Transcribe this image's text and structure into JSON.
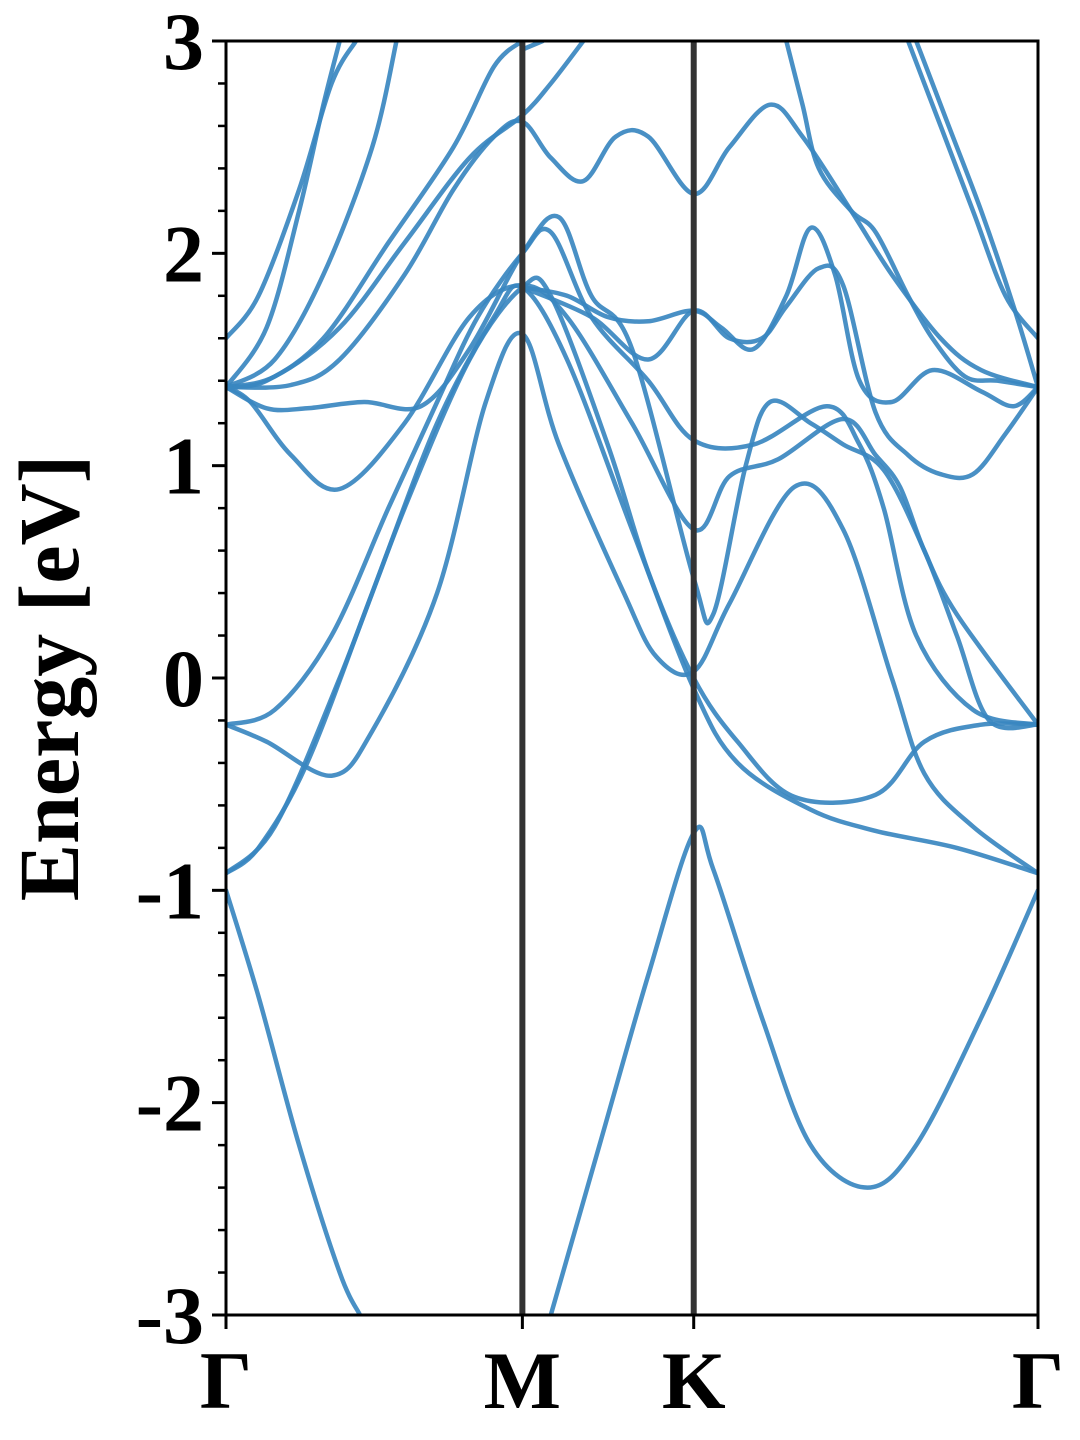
{
  "chart_data": {
    "type": "line",
    "title": "",
    "xlabel": "",
    "ylabel": "Energy [eV]",
    "ylim": [
      -3,
      3
    ],
    "yticks": [
      {
        "value": -3,
        "label": "-3"
      },
      {
        "value": -2,
        "label": "-2"
      },
      {
        "value": -1,
        "label": "-1"
      },
      {
        "value": 0,
        "label": "0"
      },
      {
        "value": 1,
        "label": "1"
      },
      {
        "value": 2,
        "label": "2"
      },
      {
        "value": 3,
        "label": "3"
      }
    ],
    "xlim": [
      0,
      1
    ],
    "high_symmetry_points": [
      {
        "label": "Γ",
        "x": 0.0
      },
      {
        "label": "M",
        "x": 0.365
      },
      {
        "label": "K",
        "x": 0.576
      },
      {
        "label": "Γ",
        "x": 1.0
      }
    ],
    "grid": false,
    "line_color": "#3a87c0",
    "divider_color": "#333333",
    "series": [
      {
        "values": [
          [
            0,
            -1.0
          ],
          [
            0.04,
            -1.5
          ],
          [
            0.09,
            -2.2
          ],
          [
            0.14,
            -2.8
          ],
          [
            0.165,
            -3.0
          ]
        ]
      },
      {
        "values": [
          [
            0.4,
            -3.0
          ],
          [
            0.46,
            -2.2
          ],
          [
            0.52,
            -1.4
          ],
          [
            0.576,
            -0.73
          ],
          [
            0.6,
            -0.9
          ],
          [
            0.66,
            -1.6
          ],
          [
            0.72,
            -2.2
          ],
          [
            0.79,
            -2.4
          ],
          [
            0.85,
            -2.2
          ],
          [
            0.93,
            -1.6
          ],
          [
            1.0,
            -1.0
          ]
        ]
      },
      {
        "values": [
          [
            0,
            -0.92
          ],
          [
            0.04,
            -0.8
          ],
          [
            0.1,
            -0.4
          ],
          [
            0.18,
            0.4
          ],
          [
            0.26,
            1.2
          ],
          [
            0.33,
            1.7
          ],
          [
            0.365,
            1.84
          ],
          [
            0.42,
            1.5
          ],
          [
            0.5,
            0.7
          ],
          [
            0.576,
            -0.05
          ],
          [
            0.63,
            -0.4
          ],
          [
            0.72,
            -0.62
          ],
          [
            0.8,
            -0.72
          ],
          [
            0.9,
            -0.8
          ],
          [
            1.0,
            -0.92
          ]
        ]
      },
      {
        "values": [
          [
            0,
            -0.92
          ],
          [
            0.06,
            -0.7
          ],
          [
            0.14,
            0.0
          ],
          [
            0.22,
            0.8
          ],
          [
            0.3,
            1.5
          ],
          [
            0.365,
            1.84
          ],
          [
            0.4,
            1.8
          ],
          [
            0.47,
            1.1
          ],
          [
            0.52,
            0.5
          ],
          [
            0.576,
            0.0
          ],
          [
            0.63,
            -0.3
          ],
          [
            0.7,
            -0.56
          ],
          [
            0.8,
            -0.55
          ],
          [
            0.86,
            -0.3
          ],
          [
            0.93,
            -0.22
          ],
          [
            1.0,
            -0.22
          ]
        ]
      },
      {
        "values": [
          [
            0,
            -0.22
          ],
          [
            0.05,
            -0.3
          ],
          [
            0.13,
            -0.46
          ],
          [
            0.18,
            -0.25
          ],
          [
            0.26,
            0.4
          ],
          [
            0.32,
            1.3
          ],
          [
            0.365,
            1.62
          ],
          [
            0.41,
            1.1
          ],
          [
            0.49,
            0.4
          ],
          [
            0.53,
            0.1
          ],
          [
            0.576,
            0.03
          ],
          [
            0.62,
            0.35
          ],
          [
            0.7,
            0.9
          ],
          [
            0.76,
            0.7
          ],
          [
            0.82,
            0.0
          ],
          [
            0.86,
            -0.45
          ],
          [
            0.92,
            -0.7
          ],
          [
            1.0,
            -0.92
          ]
        ]
      },
      {
        "values": [
          [
            0,
            -0.22
          ],
          [
            0.06,
            -0.15
          ],
          [
            0.13,
            0.2
          ],
          [
            0.2,
            0.8
          ],
          [
            0.26,
            1.3
          ],
          [
            0.31,
            1.7
          ],
          [
            0.365,
            2.0
          ],
          [
            0.4,
            2.1
          ],
          [
            0.45,
            1.7
          ],
          [
            0.52,
            1.4
          ],
          [
            0.576,
            1.12
          ],
          [
            0.65,
            1.1
          ],
          [
            0.74,
            1.28
          ],
          [
            0.78,
            1.1
          ],
          [
            0.81,
            0.8
          ],
          [
            0.85,
            0.2
          ],
          [
            0.92,
            -0.15
          ],
          [
            1.0,
            -0.22
          ]
        ]
      },
      {
        "values": [
          [
            0,
            1.37
          ],
          [
            0.03,
            1.3
          ],
          [
            0.08,
            1.05
          ],
          [
            0.14,
            0.89
          ],
          [
            0.22,
            1.2
          ],
          [
            0.3,
            1.7
          ],
          [
            0.365,
            1.85
          ],
          [
            0.42,
            1.7
          ],
          [
            0.5,
            1.2
          ],
          [
            0.576,
            0.7
          ],
          [
            0.62,
            0.95
          ],
          [
            0.68,
            1.03
          ],
          [
            0.76,
            1.22
          ],
          [
            0.8,
            1.05
          ],
          [
            0.83,
            0.9
          ],
          [
            0.86,
            0.6
          ],
          [
            0.9,
            0.3
          ],
          [
            1.0,
            -0.22
          ]
        ]
      },
      {
        "values": [
          [
            0,
            1.37
          ],
          [
            0.05,
            1.27
          ],
          [
            0.1,
            1.27
          ],
          [
            0.17,
            1.3
          ],
          [
            0.24,
            1.28
          ],
          [
            0.3,
            1.55
          ],
          [
            0.365,
            2.0
          ],
          [
            0.41,
            2.17
          ],
          [
            0.45,
            1.8
          ],
          [
            0.5,
            1.55
          ],
          [
            0.576,
            0.47
          ],
          [
            0.6,
            0.3
          ],
          [
            0.64,
            1.0
          ],
          [
            0.67,
            1.3
          ],
          [
            0.72,
            1.2
          ],
          [
            0.76,
            1.1
          ],
          [
            0.81,
            0.98
          ],
          [
            0.86,
            0.6
          ],
          [
            0.9,
            0.2
          ],
          [
            0.94,
            -0.2
          ],
          [
            1.0,
            -0.22
          ]
        ]
      },
      {
        "values": [
          [
            0,
            1.37
          ],
          [
            0.08,
            1.38
          ],
          [
            0.14,
            1.5
          ],
          [
            0.22,
            1.9
          ],
          [
            0.28,
            2.3
          ],
          [
            0.33,
            2.55
          ],
          [
            0.365,
            2.62
          ],
          [
            0.4,
            2.45
          ],
          [
            0.44,
            2.34
          ],
          [
            0.48,
            2.55
          ],
          [
            0.52,
            2.55
          ],
          [
            0.576,
            2.28
          ],
          [
            0.62,
            2.5
          ],
          [
            0.67,
            2.7
          ],
          [
            0.71,
            2.55
          ],
          [
            0.77,
            2.2
          ],
          [
            0.82,
            1.9
          ],
          [
            0.88,
            1.6
          ],
          [
            0.93,
            1.45
          ],
          [
            1.0,
            1.37
          ]
        ]
      },
      {
        "values": [
          [
            0,
            1.37
          ],
          [
            0.06,
            1.42
          ],
          [
            0.14,
            1.65
          ],
          [
            0.22,
            2.05
          ],
          [
            0.3,
            2.45
          ],
          [
            0.365,
            2.65
          ],
          [
            0.4,
            2.8
          ],
          [
            0.44,
            3.0
          ]
        ]
      },
      {
        "values": [
          [
            0,
            1.37
          ],
          [
            0.05,
            1.4
          ],
          [
            0.12,
            1.6
          ],
          [
            0.2,
            2.05
          ],
          [
            0.28,
            2.5
          ],
          [
            0.33,
            2.88
          ],
          [
            0.365,
            3.0
          ]
        ]
      },
      {
        "values": [
          [
            0,
            1.37
          ],
          [
            0.06,
            1.5
          ],
          [
            0.12,
            1.9
          ],
          [
            0.18,
            2.5
          ],
          [
            0.21,
            3.0
          ]
        ]
      },
      {
        "values": [
          [
            0,
            1.6
          ],
          [
            0.04,
            1.8
          ],
          [
            0.09,
            2.3
          ],
          [
            0.13,
            2.8
          ],
          [
            0.16,
            3.0
          ]
        ]
      },
      {
        "values": [
          [
            0,
            1.37
          ],
          [
            0.05,
            1.65
          ],
          [
            0.09,
            2.2
          ],
          [
            0.12,
            2.7
          ],
          [
            0.14,
            3.0
          ]
        ]
      },
      {
        "values": [
          [
            0.365,
            2.96
          ],
          [
            0.39,
            3.0
          ]
        ]
      },
      {
        "values": [
          [
            0.365,
            1.84
          ],
          [
            0.42,
            1.8
          ],
          [
            0.47,
            1.7
          ],
          [
            0.52,
            1.68
          ],
          [
            0.576,
            1.73
          ],
          [
            0.61,
            1.65
          ],
          [
            0.65,
            1.55
          ],
          [
            0.69,
            1.8
          ],
          [
            0.72,
            2.12
          ],
          [
            0.75,
            1.9
          ],
          [
            0.78,
            1.4
          ],
          [
            0.82,
            1.3
          ],
          [
            0.87,
            1.45
          ],
          [
            0.93,
            1.35
          ],
          [
            0.97,
            1.28
          ],
          [
            1.0,
            1.37
          ]
        ]
      },
      {
        "values": [
          [
            0.365,
            1.84
          ],
          [
            0.45,
            1.7
          ],
          [
            0.52,
            1.5
          ],
          [
            0.576,
            1.73
          ],
          [
            0.62,
            1.6
          ],
          [
            0.66,
            1.6
          ],
          [
            0.69,
            1.75
          ],
          [
            0.73,
            1.93
          ],
          [
            0.76,
            1.85
          ],
          [
            0.8,
            1.25
          ],
          [
            0.84,
            1.05
          ],
          [
            0.88,
            0.96
          ],
          [
            0.92,
            0.96
          ],
          [
            0.96,
            1.15
          ],
          [
            1.0,
            1.37
          ]
        ]
      },
      {
        "values": [
          [
            0.69,
            3.0
          ],
          [
            0.71,
            2.7
          ],
          [
            0.73,
            2.4
          ],
          [
            0.77,
            2.2
          ],
          [
            0.8,
            2.1
          ],
          [
            0.84,
            1.8
          ],
          [
            0.87,
            1.6
          ],
          [
            0.91,
            1.42
          ],
          [
            0.95,
            1.4
          ],
          [
            1.0,
            1.37
          ]
        ]
      },
      {
        "values": [
          [
            0.84,
            3.0
          ],
          [
            0.88,
            2.6
          ],
          [
            0.92,
            2.2
          ],
          [
            0.96,
            1.8
          ],
          [
            1.0,
            1.6
          ]
        ]
      },
      {
        "values": [
          [
            0.85,
            3.0
          ],
          [
            0.89,
            2.6
          ],
          [
            0.93,
            2.2
          ],
          [
            0.97,
            1.75
          ],
          [
            1.0,
            1.37
          ]
        ]
      }
    ]
  }
}
